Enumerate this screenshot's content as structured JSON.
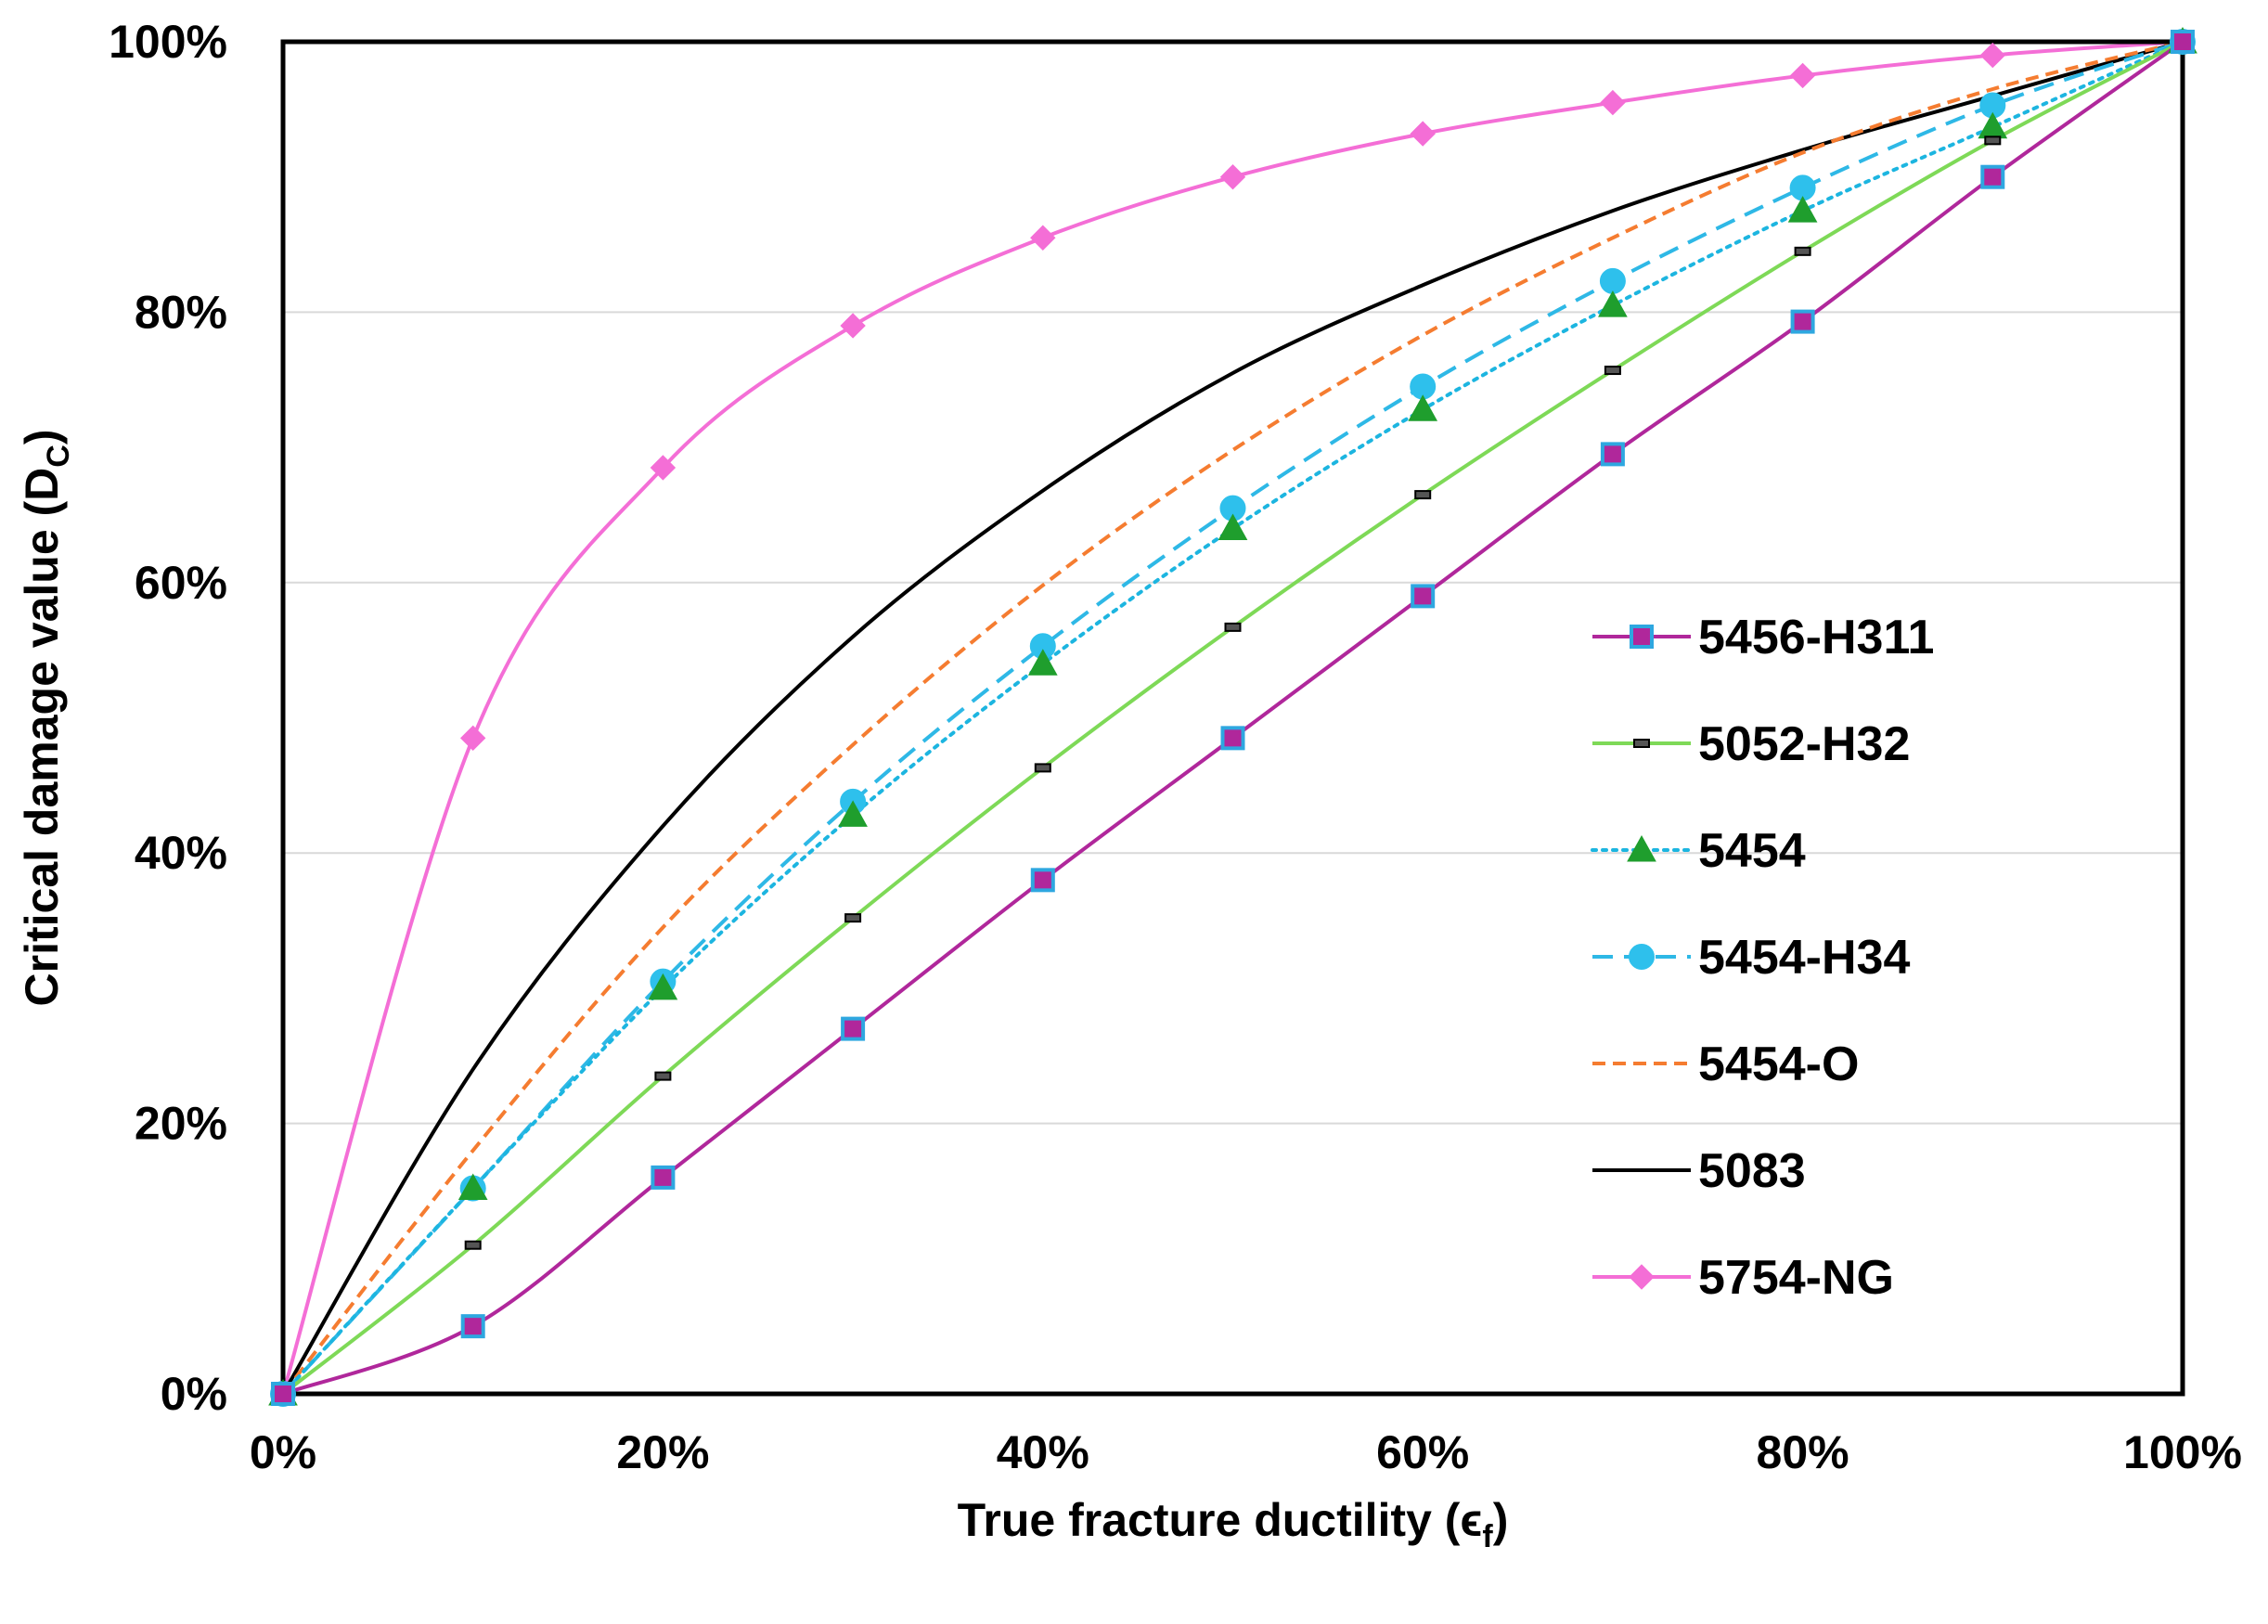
{
  "chart_data": {
    "type": "line",
    "title": "",
    "xlabel": "True fracture ductility (",
    "xlabel_symbol": "ϵ",
    "xlabel_sub": "f",
    "xlabel_close": ")",
    "ylabel": "Critical damage value (D",
    "ylabel_sub": "C",
    "ylabel_close": ")",
    "xlim": [
      0,
      1
    ],
    "ylim": [
      0,
      1
    ],
    "x_ticks": [
      0,
      0.2,
      0.4,
      0.6,
      0.8,
      1.0
    ],
    "x_tick_labels": [
      "0%",
      "20%",
      "40%",
      "60%",
      "80%",
      "100%"
    ],
    "y_ticks": [
      0,
      0.2,
      0.4,
      0.6,
      0.8,
      1.0
    ],
    "y_tick_labels": [
      "0%",
      "20%",
      "40%",
      "60%",
      "80%",
      "100%"
    ],
    "grid": "horizontal",
    "legend_position": "right",
    "x": [
      0,
      0.1,
      0.2,
      0.3,
      0.4,
      0.5,
      0.6,
      0.7,
      0.8,
      0.9,
      1.0
    ],
    "series": [
      {
        "name": "5456-H311",
        "color": "#b0279b",
        "line": "solid",
        "marker": "square",
        "marker_fill": "#b0279b",
        "marker_edge": "#2ea7e0",
        "marker_size": 22,
        "show_markers": true,
        "values": [
          0,
          0.05,
          0.16,
          0.27,
          0.38,
          0.485,
          0.59,
          0.695,
          0.793,
          0.9,
          1.0
        ]
      },
      {
        "name": "5052-H32",
        "color": "#7ed957",
        "line": "solid",
        "marker": "dash",
        "marker_fill": "#555555",
        "marker_edge": "#000000",
        "marker_size": 14,
        "show_markers": true,
        "values": [
          0,
          0.11,
          0.235,
          0.352,
          0.463,
          0.567,
          0.665,
          0.757,
          0.845,
          0.927,
          1.0
        ]
      },
      {
        "name": "5454",
        "color": "#1cb5e0",
        "line": "dotted",
        "marker": "triangle",
        "marker_fill": "#1f9e2d",
        "marker_edge": "#1f9e2d",
        "marker_size": 30,
        "show_markers": true,
        "values": [
          0,
          0.152,
          0.3,
          0.428,
          0.54,
          0.64,
          0.728,
          0.805,
          0.875,
          0.937,
          1.0
        ]
      },
      {
        "name": "5454-H34",
        "color": "#2eb8e6",
        "line": "dashed",
        "marker": "circle",
        "marker_fill": "#2ec0ec",
        "marker_edge": "#2ec0ec",
        "marker_size": 26,
        "show_markers": true,
        "values": [
          0,
          0.152,
          0.305,
          0.438,
          0.553,
          0.655,
          0.745,
          0.823,
          0.892,
          0.953,
          1.0
        ]
      },
      {
        "name": "5454-O",
        "color": "#f57c30",
        "line": "dashed",
        "marker": "none",
        "show_markers": false,
        "values": [
          0,
          0.18,
          0.345,
          0.48,
          0.598,
          0.698,
          0.783,
          0.855,
          0.918,
          0.965,
          1.0
        ]
      },
      {
        "name": "5083",
        "color": "#000000",
        "line": "solid",
        "marker": "none",
        "show_markers": false,
        "values": [
          0,
          0.24,
          0.42,
          0.56,
          0.668,
          0.755,
          0.82,
          0.875,
          0.92,
          0.96,
          1.0
        ]
      },
      {
        "name": "5754-NG",
        "color": "#f46ed6",
        "line": "solid",
        "marker": "diamond",
        "marker_fill": "#f46ed6",
        "marker_edge": "#f46ed6",
        "marker_size": 26,
        "show_markers": true,
        "values": [
          0,
          0.485,
          0.685,
          0.79,
          0.855,
          0.9,
          0.932,
          0.955,
          0.975,
          0.99,
          1.0
        ]
      }
    ]
  }
}
